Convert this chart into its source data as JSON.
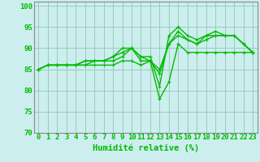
{
  "xlabel": "Humidité relative (%)",
  "bg_color": "#cceeee",
  "grid_color": "#99ccbb",
  "line_color": "#00bb00",
  "xlim": [
    -0.5,
    23.5
  ],
  "ylim": [
    70,
    101
  ],
  "yticks": [
    70,
    75,
    80,
    85,
    90,
    95,
    100
  ],
  "xticks": [
    0,
    1,
    2,
    3,
    4,
    5,
    6,
    7,
    8,
    9,
    10,
    11,
    12,
    13,
    14,
    15,
    16,
    17,
    18,
    19,
    20,
    21,
    22,
    23
  ],
  "series": [
    [
      85,
      86,
      86,
      86,
      86,
      86,
      86,
      86,
      86,
      87,
      87,
      86,
      87,
      78,
      82,
      91,
      89,
      89,
      89,
      89,
      89,
      89,
      89,
      89
    ],
    [
      85,
      86,
      86,
      86,
      86,
      87,
      87,
      87,
      87,
      88,
      90,
      88,
      87,
      84,
      91,
      93,
      92,
      91,
      92,
      93,
      93,
      93,
      91,
      89
    ],
    [
      85,
      86,
      86,
      86,
      86,
      87,
      87,
      87,
      88,
      89,
      90,
      88,
      88,
      81,
      93,
      95,
      93,
      92,
      93,
      94,
      93,
      93,
      91,
      89
    ],
    [
      85,
      86,
      86,
      86,
      86,
      86,
      87,
      87,
      88,
      90,
      90,
      87,
      87,
      85,
      91,
      94,
      92,
      91,
      93,
      93,
      93,
      93,
      91,
      89
    ]
  ],
  "tick_fontsize": 6.5,
  "xlabel_fontsize": 7.5,
  "line_width": 1.0,
  "marker_size": 3.0
}
